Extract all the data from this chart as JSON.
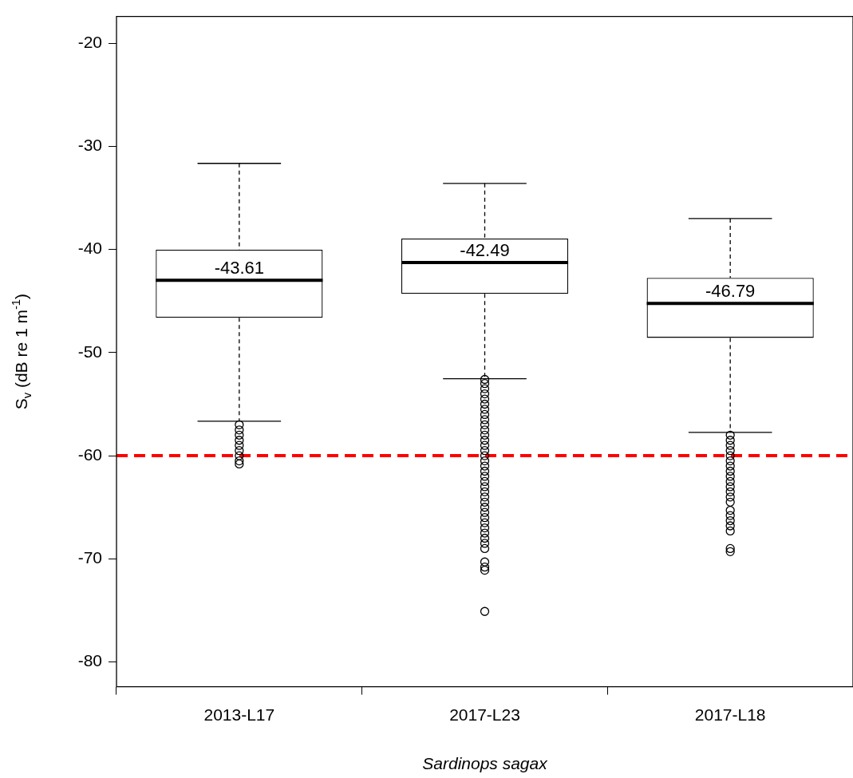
{
  "chart_data": {
    "type": "box",
    "categories": [
      "2013-L17",
      "2017-L23",
      "2017-L18"
    ],
    "xlabel": "Sardinops sagax",
    "ylabel": "S$_{v}$ (dB re 1 m$^{-1}$)",
    "ylim": [
      -82.4,
      -17.4
    ],
    "yticks": [
      -80,
      -70,
      -60,
      -50,
      -40,
      -30,
      -20
    ],
    "grid": false,
    "legend": false,
    "boxes": [
      {
        "low": -56.65,
        "q1": -46.63,
        "median": -42.98,
        "q3": -40.03,
        "high": -31.65,
        "outliers": [
          -57,
          -57.5,
          -58,
          -58.5,
          -59,
          -59.5,
          -60,
          -60.5,
          -60.8
        ]
      },
      {
        "low": -52.53,
        "q1": -44.3,
        "median": -41.27,
        "q3": -38.94,
        "high": -33.59,
        "outliers": [
          -52.6,
          -53,
          -53.5,
          -54,
          -54.5,
          -55,
          -55.5,
          -56,
          -56.5,
          -57,
          -57.5,
          -58,
          -58.5,
          -59,
          -59.5,
          -60,
          -60.5,
          -61,
          -61.5,
          -62,
          -62.5,
          -63,
          -63.5,
          -64,
          -64.5,
          -65,
          -65.5,
          -66,
          -66.5,
          -67,
          -67.5,
          -68,
          -68.5,
          -69,
          -70.3,
          -70.8,
          -71.1,
          -75.1
        ]
      },
      {
        "low": -57.73,
        "q1": -48.57,
        "median": -45.23,
        "q3": -42.75,
        "high": -37.0,
        "outliers": [
          -58,
          -58.5,
          -59,
          -59.5,
          -60,
          -60.5,
          -61,
          -61.5,
          -62,
          -62.5,
          -63,
          -63.5,
          -64,
          -64.5,
          -65.3,
          -65.8,
          -66.3,
          -66.8,
          -67.3,
          -69.0,
          -69.3
        ]
      }
    ],
    "ref_lines": [
      {
        "axis": "y",
        "value": -60,
        "color": "#ff0000",
        "line_style": "dashed"
      }
    ],
    "annotations": [
      "-43.61",
      "-42.49",
      "-46.79"
    ]
  }
}
